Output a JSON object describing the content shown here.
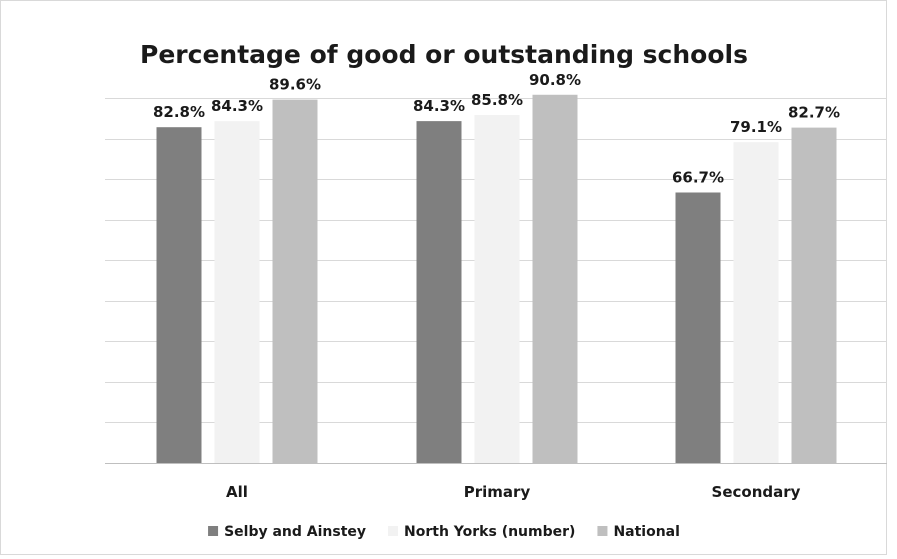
{
  "chart_data": {
    "type": "bar",
    "title": "Percentage of good or outstanding schools",
    "xlabel": "",
    "ylabel": "",
    "ylim": [
      0,
      0.9
    ],
    "y_tick_step": 0.1,
    "grid": true,
    "legend_position": "bottom",
    "categories": [
      "All",
      "Primary",
      "Secondary"
    ],
    "series": [
      {
        "name": "Selby and Ainstey",
        "color": "#7f7f7f",
        "values": [
          0.828,
          0.843,
          0.667
        ],
        "labels": [
          "82.8%",
          "84.3%",
          "66.7%"
        ]
      },
      {
        "name": "North Yorks (number)",
        "color": "#f2f2f2",
        "values": [
          0.843,
          0.858,
          0.791
        ],
        "labels": [
          "84.3%",
          "85.8%",
          "79.1%"
        ]
      },
      {
        "name": "National",
        "color": "#bfbfbf",
        "values": [
          0.896,
          0.908,
          0.827
        ],
        "labels": [
          "89.6%",
          "90.8%",
          "82.7%"
        ]
      }
    ]
  }
}
